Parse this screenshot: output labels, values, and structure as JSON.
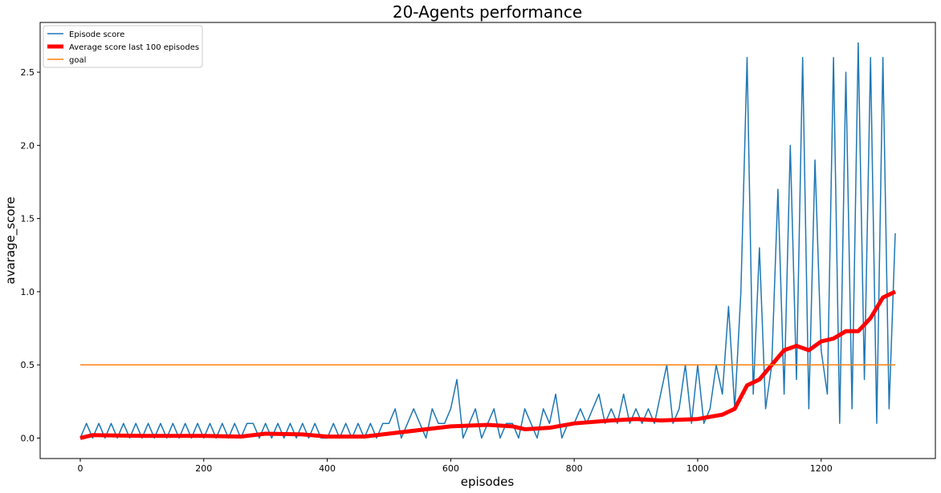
{
  "chart_data": {
    "type": "line",
    "title": "20-Agents performance",
    "x_label": "episodes",
    "y_label": "avarage_score",
    "xlim": [
      -65,
      1385
    ],
    "ylim": [
      -0.14,
      2.84
    ],
    "xticks": [
      0,
      200,
      400,
      600,
      800,
      1000,
      1200
    ],
    "yticks": [
      {
        "value": 0,
        "label": "0.0"
      },
      0.5,
      {
        "value": 1,
        "label": "1.0"
      },
      1.5,
      {
        "value": 2,
        "label": "2.0"
      },
      2.5
    ],
    "grid": false,
    "legend": "upper left",
    "series": [
      {
        "name": "Episode score",
        "color": "#1f77b4",
        "width": 1.5,
        "x": [
          0,
          10,
          20,
          30,
          40,
          50,
          60,
          70,
          80,
          90,
          100,
          110,
          120,
          130,
          140,
          150,
          160,
          170,
          180,
          190,
          200,
          210,
          220,
          230,
          240,
          250,
          260,
          270,
          280,
          290,
          300,
          310,
          320,
          330,
          340,
          350,
          360,
          370,
          380,
          390,
          400,
          410,
          420,
          430,
          440,
          450,
          460,
          470,
          480,
          490,
          500,
          510,
          520,
          530,
          540,
          550,
          560,
          570,
          580,
          590,
          600,
          610,
          620,
          630,
          640,
          650,
          660,
          670,
          680,
          690,
          700,
          710,
          720,
          730,
          740,
          750,
          760,
          770,
          780,
          790,
          800,
          810,
          820,
          830,
          840,
          850,
          860,
          870,
          880,
          890,
          900,
          910,
          920,
          930,
          940,
          950,
          960,
          970,
          980,
          990,
          1000,
          1010,
          1020,
          1030,
          1040,
          1050,
          1060,
          1070,
          1080,
          1090,
          1100,
          1110,
          1120,
          1130,
          1140,
          1150,
          1160,
          1170,
          1180,
          1190,
          1200,
          1210,
          1220,
          1230,
          1240,
          1250,
          1260,
          1270,
          1280,
          1290,
          1300,
          1310,
          1320
        ],
        "values": [
          0,
          0.1,
          0,
          0.1,
          0,
          0.1,
          0,
          0.1,
          0,
          0.1,
          0,
          0.1,
          0,
          0.1,
          0,
          0.1,
          0,
          0.1,
          0,
          0.1,
          0,
          0.1,
          0,
          0.1,
          0,
          0.1,
          0,
          0.1,
          0.1,
          0,
          0.1,
          0,
          0.1,
          0,
          0.1,
          0,
          0.1,
          0,
          0.1,
          0,
          0,
          0.1,
          0,
          0.1,
          0,
          0.1,
          0,
          0.1,
          0,
          0.1,
          0.1,
          0.2,
          0,
          0.1,
          0.2,
          0.1,
          0,
          0.2,
          0.1,
          0.1,
          0.2,
          0.4,
          0,
          0.1,
          0.2,
          0,
          0.1,
          0.2,
          0,
          0.1,
          0.1,
          0,
          0.2,
          0.1,
          0,
          0.2,
          0.1,
          0.3,
          0,
          0.1,
          0.1,
          0.2,
          0.1,
          0.2,
          0.3,
          0.1,
          0.2,
          0.1,
          0.3,
          0.1,
          0.2,
          0.1,
          0.2,
          0.1,
          0.3,
          0.5,
          0.1,
          0.2,
          0.5,
          0.1,
          0.5,
          0.1,
          0.2,
          0.5,
          0.3,
          0.9,
          0.2,
          1.0,
          2.6,
          0.3,
          1.3,
          0.2,
          0.5,
          1.7,
          0.3,
          2.0,
          0.4,
          2.6,
          0.2,
          1.9,
          0.6,
          0.3,
          2.6,
          0.1,
          2.5,
          0.2,
          2.7,
          0.4,
          2.6,
          0.1,
          2.6,
          0.2,
          1.4
        ]
      },
      {
        "name": "Average score last 100 episodes",
        "color": "#ff0000",
        "width": 5,
        "x": [
          0,
          10,
          20,
          100,
          200,
          260,
          300,
          360,
          400,
          460,
          520,
          560,
          600,
          660,
          700,
          720,
          760,
          800,
          860,
          900,
          940,
          1000,
          1040,
          1060,
          1070,
          1080,
          1090,
          1100,
          1120,
          1140,
          1160,
          1180,
          1200,
          1220,
          1240,
          1260,
          1280,
          1300,
          1310,
          1320
        ],
        "values": [
          0,
          0.01,
          0.02,
          0.015,
          0.015,
          0.01,
          0.03,
          0.025,
          0.01,
          0.01,
          0.04,
          0.06,
          0.08,
          0.09,
          0.08,
          0.06,
          0.07,
          0.1,
          0.12,
          0.13,
          0.12,
          0.13,
          0.16,
          0.2,
          0.28,
          0.36,
          0.38,
          0.4,
          0.5,
          0.6,
          0.63,
          0.6,
          0.66,
          0.68,
          0.73,
          0.73,
          0.82,
          0.96,
          0.98,
          1.0
        ]
      },
      {
        "name": "goal",
        "color": "#ff7f0e",
        "width": 1.5,
        "x": [
          0,
          1320
        ],
        "values": [
          0.5,
          0.5
        ]
      }
    ]
  }
}
